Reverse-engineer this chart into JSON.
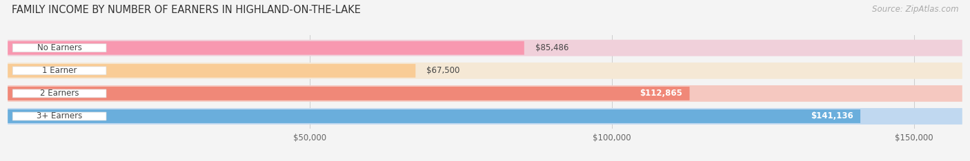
{
  "title": "FAMILY INCOME BY NUMBER OF EARNERS IN HIGHLAND-ON-THE-LAKE",
  "source": "Source: ZipAtlas.com",
  "categories": [
    "No Earners",
    "1 Earner",
    "2 Earners",
    "3+ Earners"
  ],
  "values": [
    85486,
    67500,
    112865,
    141136
  ],
  "value_labels": [
    "$85,486",
    "$67,500",
    "$112,865",
    "$141,136"
  ],
  "bar_colors": [
    "#f898b0",
    "#f9cc96",
    "#f08878",
    "#6aaedc"
  ],
  "bar_bg_colors": [
    "#f0d0da",
    "#f5e8d5",
    "#f5c8c0",
    "#c0d8f0"
  ],
  "label_colors": [
    "#555555",
    "#555555",
    "#ffffff",
    "#ffffff"
  ],
  "xmax": 158000,
  "xticks": [
    50000,
    100000,
    150000
  ],
  "xtick_labels": [
    "$50,000",
    "$100,000",
    "$150,000"
  ],
  "background_color": "#f4f4f4",
  "title_fontsize": 10.5,
  "source_fontsize": 8.5,
  "label_fontsize": 8.5,
  "tick_fontsize": 8.5
}
